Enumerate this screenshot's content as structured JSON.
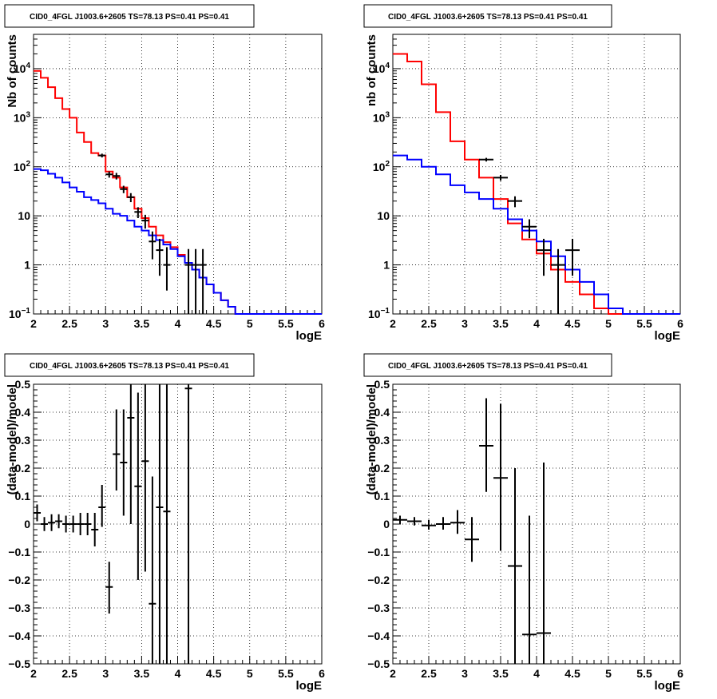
{
  "chart_data": [
    {
      "id": "top-left",
      "type": "histogram-log",
      "title": "CID0_4FGL J1003.6+2605 TS=78.13 PS=0.41 PS=0.41",
      "xlabel": "logE",
      "ylabel": "Nb of counts",
      "xlim": [
        2,
        6
      ],
      "ylim": [
        0.1,
        50000
      ],
      "log_y": true,
      "grid": true,
      "x_ticks": [
        2,
        2.5,
        3,
        3.5,
        4,
        4.5,
        5,
        5.5,
        6
      ],
      "x_tick_labels": [
        "2",
        "2.5",
        "3",
        "3.5",
        "4",
        "4.5",
        "5",
        "5.5",
        "6"
      ],
      "y_ticks": [
        0.1,
        1,
        10,
        100,
        1000,
        10000
      ],
      "y_tick_labels": [
        {
          "b": "10",
          "e": "−1"
        },
        {
          "b": "1",
          "e": ""
        },
        {
          "b": "10",
          "e": ""
        },
        {
          "b": "10",
          "e": "2"
        },
        {
          "b": "10",
          "e": "3"
        },
        {
          "b": "10",
          "e": "4"
        }
      ],
      "series": [
        {
          "color": "#ff0000",
          "step": true,
          "x_edges": [
            2,
            2.1,
            2.2,
            2.3,
            2.4,
            2.5,
            2.6,
            2.7,
            2.8,
            2.9,
            3,
            3.1,
            3.2,
            3.3,
            3.4,
            3.5,
            3.6,
            3.7,
            3.8,
            3.9,
            4,
            4.1,
            4.2,
            4.3,
            4.4,
            4.5,
            4.6,
            4.7,
            4.8,
            4.9,
            5,
            5.1,
            5.2,
            5.3,
            5.4,
            5.5,
            5.6,
            5.7,
            5.8,
            5.9,
            6
          ],
          "values": [
            9000,
            6500,
            4200,
            2500,
            1500,
            1000,
            500,
            320,
            190,
            170,
            80,
            60,
            38,
            24,
            14,
            9,
            6,
            4,
            2.9,
            2.3,
            1.6,
            1.1,
            0.8,
            0.55,
            0.4,
            0.27,
            0.19,
            0.14,
            0.1,
            0.1,
            0.1,
            0.1,
            0.1,
            0.1,
            0.1,
            0.1,
            0.1,
            0.1,
            0.1,
            0.1
          ]
        },
        {
          "color": "#0000ff",
          "step": true,
          "x_edges": [
            2,
            2.1,
            2.2,
            2.3,
            2.4,
            2.5,
            2.6,
            2.7,
            2.8,
            2.9,
            3,
            3.1,
            3.2,
            3.3,
            3.4,
            3.5,
            3.6,
            3.7,
            3.8,
            3.9,
            4,
            4.1,
            4.2,
            4.3,
            4.4,
            4.5,
            4.6,
            4.7,
            4.8,
            4.9,
            5,
            5.1,
            5.2,
            5.3,
            5.4,
            5.5,
            5.6,
            5.7,
            5.8,
            5.9,
            6
          ],
          "values": [
            90,
            85,
            72,
            60,
            48,
            38,
            31,
            24,
            21,
            18,
            14,
            11,
            10,
            8,
            6,
            5,
            4,
            3.2,
            2.6,
            2.1,
            1.5,
            1.1,
            0.8,
            0.55,
            0.4,
            0.27,
            0.19,
            0.14,
            0.1,
            0.1,
            0.1,
            0.1,
            0.1,
            0.1,
            0.1,
            0.1,
            0.1,
            0.1,
            0.1,
            0.1
          ]
        }
      ],
      "points": [
        {
          "x": 2.95,
          "y": 170,
          "xerr": 0.05,
          "ylo": 155,
          "yhi": 185
        },
        {
          "x": 3.05,
          "y": 70,
          "xerr": 0.05,
          "ylo": 60,
          "yhi": 80
        },
        {
          "x": 3.15,
          "y": 65,
          "xerr": 0.05,
          "ylo": 55,
          "yhi": 75
        },
        {
          "x": 3.25,
          "y": 35,
          "xerr": 0.05,
          "ylo": 29,
          "yhi": 41
        },
        {
          "x": 3.35,
          "y": 24,
          "xerr": 0.05,
          "ylo": 19,
          "yhi": 29
        },
        {
          "x": 3.45,
          "y": 12,
          "xerr": 0.05,
          "ylo": 9,
          "yhi": 15
        },
        {
          "x": 3.55,
          "y": 8,
          "xerr": 0.05,
          "ylo": 5.5,
          "yhi": 10.5
        },
        {
          "x": 3.65,
          "y": 3,
          "xerr": 0.05,
          "ylo": 1.3,
          "yhi": 4.8
        },
        {
          "x": 3.75,
          "y": 2,
          "xerr": 0.05,
          "ylo": 0.6,
          "yhi": 3.4
        },
        {
          "x": 3.85,
          "y": 1,
          "xerr": 0.05,
          "ylo": 0.3,
          "yhi": 2.3
        },
        {
          "x": 4.15,
          "y": 1,
          "xerr": 0.05,
          "ylo": 0.1,
          "yhi": 2.1
        },
        {
          "x": 4.25,
          "y": 1,
          "xerr": 0.05,
          "ylo": 0.1,
          "yhi": 2.1
        },
        {
          "x": 4.35,
          "y": 1,
          "xerr": 0.05,
          "ylo": 0.1,
          "yhi": 2.1
        }
      ]
    },
    {
      "id": "top-right",
      "type": "histogram-log",
      "title": "CID0_4FGL J1003.6+2605 TS=78.13 PS=0.41 PS=0.41",
      "xlabel": "logE",
      "ylabel": "nb of counts",
      "xlim": [
        2,
        6
      ],
      "ylim": [
        0.1,
        50000
      ],
      "log_y": true,
      "grid": true,
      "x_ticks": [
        2,
        2.5,
        3,
        3.5,
        4,
        4.5,
        5,
        5.5,
        6
      ],
      "x_tick_labels": [
        "2",
        "2.5",
        "3",
        "3.5",
        "4",
        "4.5",
        "5",
        "5.5",
        "6"
      ],
      "y_ticks": [
        0.1,
        1,
        10,
        100,
        1000,
        10000
      ],
      "y_tick_labels": [
        {
          "b": "10",
          "e": "−1"
        },
        {
          "b": "1",
          "e": ""
        },
        {
          "b": "10",
          "e": ""
        },
        {
          "b": "10",
          "e": "2"
        },
        {
          "b": "10",
          "e": "3"
        },
        {
          "b": "10",
          "e": "4"
        }
      ],
      "series": [
        {
          "color": "#ff0000",
          "step": true,
          "x_edges": [
            2,
            2.2,
            2.4,
            2.6,
            2.8,
            3,
            3.2,
            3.4,
            3.6,
            3.8,
            4,
            4.2,
            4.4,
            4.6,
            4.8,
            5,
            5.2,
            5.4,
            5.6,
            5.8,
            6
          ],
          "values": [
            20000,
            14000,
            4800,
            1300,
            330,
            140,
            60,
            22,
            7,
            3.3,
            1.7,
            0.8,
            0.45,
            0.25,
            0.13,
            0.1,
            0.1,
            0.1,
            0.1,
            0.1
          ]
        },
        {
          "color": "#0000ff",
          "step": true,
          "x_edges": [
            2,
            2.2,
            2.4,
            2.6,
            2.8,
            3,
            3.2,
            3.4,
            3.6,
            3.8,
            4,
            4.2,
            4.4,
            4.6,
            4.8,
            5,
            5.2,
            5.4,
            5.6,
            5.8,
            6
          ],
          "values": [
            170,
            140,
            100,
            70,
            42,
            30,
            22,
            14,
            8.5,
            5,
            3,
            1.5,
            0.8,
            0.45,
            0.25,
            0.13,
            0.1,
            0.1,
            0.1,
            0.1
          ]
        }
      ],
      "points": [
        {
          "x": 3.3,
          "y": 140,
          "xerr": 0.1,
          "ylo": 128,
          "yhi": 152
        },
        {
          "x": 3.5,
          "y": 60,
          "xerr": 0.1,
          "ylo": 52,
          "yhi": 68
        },
        {
          "x": 3.7,
          "y": 20,
          "xerr": 0.1,
          "ylo": 15,
          "yhi": 25
        },
        {
          "x": 3.9,
          "y": 6,
          "xerr": 0.1,
          "ylo": 3.5,
          "yhi": 8.5
        },
        {
          "x": 4.1,
          "y": 2,
          "xerr": 0.1,
          "ylo": 0.6,
          "yhi": 3.4
        },
        {
          "x": 4.3,
          "y": 1,
          "xerr": 0.1,
          "ylo": 0.1,
          "yhi": 2.1
        },
        {
          "x": 4.5,
          "y": 2,
          "xerr": 0.1,
          "ylo": 0.6,
          "yhi": 3.4
        }
      ]
    },
    {
      "id": "bottom-left",
      "type": "scatter-errorbars",
      "title": "CID0_4FGL J1003.6+2605 TS=78.13 PS=0.41 PS=0.41",
      "xlabel": "logE",
      "ylabel": "(data-model)/model",
      "xlim": [
        2,
        6
      ],
      "ylim": [
        -0.5,
        0.5
      ],
      "log_y": false,
      "grid": true,
      "x_ticks": [
        2,
        2.5,
        3,
        3.5,
        4,
        4.5,
        5,
        5.5,
        6
      ],
      "x_tick_labels": [
        "2",
        "2.5",
        "3",
        "3.5",
        "4",
        "4.5",
        "5",
        "5.5",
        "6"
      ],
      "y_ticks": [
        -0.5,
        -0.4,
        -0.3,
        -0.2,
        -0.1,
        0,
        0.1,
        0.2,
        0.3,
        0.4,
        0.5
      ],
      "y_tick_labels": [
        "−0.5",
        "−0.4",
        "−0.3",
        "−0.2",
        "−0.1",
        "0",
        "0.1",
        "0.2",
        "0.3",
        "0.4",
        "0.5"
      ],
      "points": [
        {
          "x": 2.05,
          "y": 0.04,
          "xerr": 0.05,
          "ylo": 0.01,
          "yhi": 0.07
        },
        {
          "x": 2.15,
          "y": 0.0,
          "xerr": 0.05,
          "ylo": -0.025,
          "yhi": 0.025
        },
        {
          "x": 2.25,
          "y": 0.005,
          "xerr": 0.05,
          "ylo": -0.025,
          "yhi": 0.035
        },
        {
          "x": 2.35,
          "y": 0.01,
          "xerr": 0.05,
          "ylo": -0.015,
          "yhi": 0.035
        },
        {
          "x": 2.45,
          "y": 0.0,
          "xerr": 0.05,
          "ylo": -0.03,
          "yhi": 0.03
        },
        {
          "x": 2.55,
          "y": 0.0,
          "xerr": 0.05,
          "ylo": -0.03,
          "yhi": 0.03
        },
        {
          "x": 2.65,
          "y": 0.0,
          "xerr": 0.05,
          "ylo": -0.04,
          "yhi": 0.04
        },
        {
          "x": 2.75,
          "y": 0.0,
          "xerr": 0.05,
          "ylo": -0.04,
          "yhi": 0.04
        },
        {
          "x": 2.85,
          "y": -0.02,
          "xerr": 0.05,
          "ylo": -0.08,
          "yhi": 0.04
        },
        {
          "x": 2.95,
          "y": 0.06,
          "xerr": 0.05,
          "ylo": -0.01,
          "yhi": 0.14
        },
        {
          "x": 3.05,
          "y": -0.225,
          "xerr": 0.05,
          "ylo": -0.32,
          "yhi": -0.135
        },
        {
          "x": 3.15,
          "y": 0.25,
          "xerr": 0.05,
          "ylo": 0.12,
          "yhi": 0.41
        },
        {
          "x": 3.25,
          "y": 0.22,
          "xerr": 0.05,
          "ylo": 0.03,
          "yhi": 0.41
        },
        {
          "x": 3.35,
          "y": 0.38,
          "xerr": 0.05,
          "ylo": 0.0,
          "yhi": 0.5
        },
        {
          "x": 3.45,
          "y": 0.135,
          "xerr": 0.05,
          "ylo": -0.2,
          "yhi": 0.47
        },
        {
          "x": 3.55,
          "y": 0.225,
          "xerr": 0.05,
          "ylo": -0.17,
          "yhi": 0.5
        },
        {
          "x": 3.65,
          "y": -0.285,
          "xerr": 0.05,
          "ylo": -0.5,
          "yhi": 0.17
        },
        {
          "x": 3.75,
          "y": 0.06,
          "xerr": 0.05,
          "ylo": -0.5,
          "yhi": 0.5
        },
        {
          "x": 3.85,
          "y": 0.045,
          "xerr": 0.05,
          "ylo": -0.5,
          "yhi": 0.5
        },
        {
          "x": 4.15,
          "y": 0.485,
          "xerr": 0.05,
          "ylo": -0.5,
          "yhi": 0.5
        }
      ]
    },
    {
      "id": "bottom-right",
      "type": "scatter-errorbars",
      "title": "CID0_4FGL J1003.6+2605 TS=78.13 PS=0.41 PS=0.41",
      "xlabel": "logE",
      "ylabel": "(data-model)/model",
      "xlim": [
        2,
        6
      ],
      "ylim": [
        -0.5,
        0.5
      ],
      "log_y": false,
      "grid": true,
      "x_ticks": [
        2,
        2.5,
        3,
        3.5,
        4,
        4.5,
        5,
        5.5,
        6
      ],
      "x_tick_labels": [
        "2",
        "2.5",
        "3",
        "3.5",
        "4",
        "4.5",
        "5",
        "5.5",
        "6"
      ],
      "y_ticks": [
        -0.5,
        -0.4,
        -0.3,
        -0.2,
        -0.1,
        0,
        0.1,
        0.2,
        0.3,
        0.4,
        0.5
      ],
      "y_tick_labels": [
        "−0.5",
        "−0.4",
        "−0.3",
        "−0.2",
        "−0.1",
        "0",
        "0.1",
        "0.2",
        "0.3",
        "0.4",
        "0.5"
      ],
      "points": [
        {
          "x": 2.1,
          "y": 0.015,
          "xerr": 0.1,
          "ylo": 0.0,
          "yhi": 0.03
        },
        {
          "x": 2.3,
          "y": 0.01,
          "xerr": 0.1,
          "ylo": -0.005,
          "yhi": 0.025
        },
        {
          "x": 2.5,
          "y": -0.005,
          "xerr": 0.1,
          "ylo": -0.02,
          "yhi": 0.015
        },
        {
          "x": 2.7,
          "y": 0.0,
          "xerr": 0.1,
          "ylo": -0.02,
          "yhi": 0.025
        },
        {
          "x": 2.9,
          "y": 0.005,
          "xerr": 0.1,
          "ylo": -0.035,
          "yhi": 0.05
        },
        {
          "x": 3.1,
          "y": -0.055,
          "xerr": 0.1,
          "ylo": -0.135,
          "yhi": 0.025
        },
        {
          "x": 3.3,
          "y": 0.28,
          "xerr": 0.1,
          "ylo": 0.115,
          "yhi": 0.45
        },
        {
          "x": 3.5,
          "y": 0.165,
          "xerr": 0.1,
          "ylo": -0.095,
          "yhi": 0.43
        },
        {
          "x": 3.7,
          "y": -0.15,
          "xerr": 0.1,
          "ylo": -0.5,
          "yhi": 0.2
        },
        {
          "x": 3.9,
          "y": -0.395,
          "xerr": 0.1,
          "ylo": -0.5,
          "yhi": 0.03
        },
        {
          "x": 4.1,
          "y": -0.39,
          "xerr": 0.1,
          "ylo": -0.5,
          "yhi": 0.22
        }
      ]
    }
  ]
}
